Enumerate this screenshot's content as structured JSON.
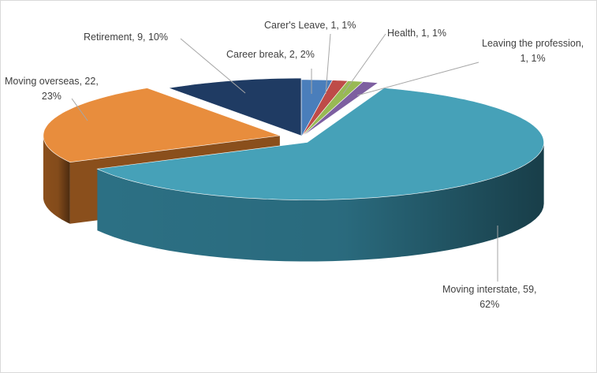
{
  "chart_data": {
    "type": "pie",
    "style": "3d",
    "title": "",
    "slices": [
      {
        "name": "Career break",
        "value": 2,
        "percent": "2%",
        "label_lines": [
          "Career break, 2, 2%"
        ],
        "color": "#4a7ebb",
        "side_color": "#2e5487"
      },
      {
        "name": "Carer's Leave",
        "value": 1,
        "percent": "1%",
        "label_lines": [
          "Carer's Leave, 1, 1%"
        ],
        "color": "#be4b48",
        "side_color": "#8a2f2d"
      },
      {
        "name": "Health",
        "value": 1,
        "percent": "1%",
        "label_lines": [
          "Health, 1, 1%"
        ],
        "color": "#98b954",
        "side_color": "#6b8a35"
      },
      {
        "name": "Leaving the profession",
        "value": 1,
        "percent": "1%",
        "label_lines": [
          "Leaving the profession,",
          "1, 1%"
        ],
        "color": "#7d5fa0",
        "side_color": "#553e74"
      },
      {
        "name": "Moving interstate",
        "value": 59,
        "percent": "62%",
        "label_lines": [
          "Moving interstate, 59,",
          "62%"
        ],
        "color": "#46a1b8",
        "side_color": "#2c7084"
      },
      {
        "name": "Moving overseas",
        "value": 22,
        "percent": "23%",
        "label_lines": [
          "Moving overseas, 22,",
          "23%"
        ],
        "color": "#e88d3d",
        "side_color": "#8a4f1c"
      },
      {
        "name": "Retirement",
        "value": 9,
        "percent": "10%",
        "label_lines": [
          "Retirement, 9, 10%"
        ],
        "color": "#1f3b63",
        "side_color": "#13243e"
      }
    ]
  }
}
